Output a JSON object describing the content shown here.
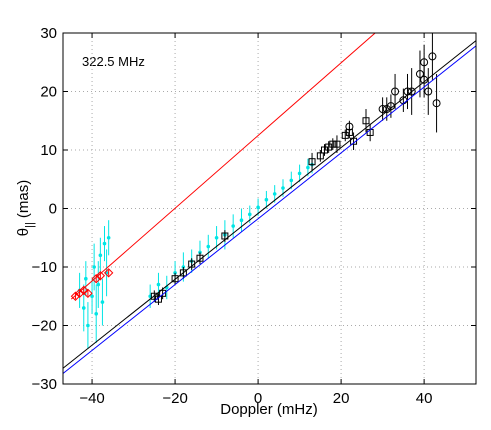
{
  "chart_data": {
    "type": "scatter",
    "annotation": "322.5 MHz",
    "x_label": "Doppler (mHz)",
    "y_label": {
      "symbol": "θ",
      "subscript": "||",
      "unit": "(mas)"
    },
    "xlim": [
      -47,
      52.5
    ],
    "ylim": [
      -30,
      30
    ],
    "xticks": [
      {
        "value": -40,
        "label": "−40"
      },
      {
        "value": -20,
        "label": "−20"
      },
      0,
      20,
      40
    ],
    "yticks": [
      {
        "value": -30,
        "label": "−30"
      },
      {
        "value": -20,
        "label": "−20"
      },
      {
        "value": -10,
        "label": "−10"
      },
      0,
      10,
      20,
      30
    ],
    "grid": true,
    "lines": [
      {
        "color": "#ff0000",
        "x": [
          -45,
          28.2
        ],
        "y": [
          -15.5,
          30
        ]
      },
      {
        "color": "#000000",
        "x": [
          -47,
          52.5
        ],
        "y": [
          -27.3,
          28.7
        ]
      },
      {
        "color": "#0000ff",
        "x": [
          -47,
          52.5
        ],
        "y": [
          -28.2,
          27.8
        ]
      }
    ],
    "series": [
      {
        "marker": "dot",
        "color": "#00e5e5",
        "x": [
          -43,
          -42,
          -41.5,
          -41,
          -40,
          -39.5,
          -39,
          -38.5,
          -38,
          -37.5,
          -37,
          -36.5,
          -36,
          -26,
          -24,
          -22,
          -20,
          -18,
          -16,
          -14,
          -12,
          -10,
          -8,
          -6,
          -4,
          -2,
          0,
          2,
          4,
          6,
          8,
          10,
          12,
          13
        ],
        "y": [
          -14,
          -17,
          -12,
          -20,
          -15,
          -10,
          -18,
          -13,
          -8,
          -16,
          -6,
          -11,
          -5,
          -15,
          -13,
          -13.5,
          -11,
          -10,
          -9,
          -7.5,
          -6.5,
          -5,
          -4.5,
          -3,
          -2,
          -1,
          0.2,
          1.5,
          2.5,
          3.5,
          4.8,
          6,
          7,
          7.5
        ],
        "errors": [
          3,
          4,
          3,
          4,
          3,
          4,
          5,
          4,
          3,
          4,
          3,
          4,
          3,
          2,
          2,
          2,
          2,
          2.5,
          2,
          2,
          2,
          2,
          2.5,
          2,
          2,
          1.5,
          1.5,
          1.5,
          1.5,
          1.5,
          1.5,
          1.5,
          1.5,
          1.5
        ]
      },
      {
        "marker": "square",
        "color": "#000000",
        "x": [
          -25,
          -24,
          -23,
          -20,
          -18,
          -16,
          -14,
          -8,
          13,
          15,
          16,
          17,
          18,
          19,
          21,
          22,
          23,
          26,
          27
        ],
        "y": [
          -15,
          -15.5,
          -14.5,
          -12,
          -11,
          -9.5,
          -8.5,
          -4.7,
          8,
          9,
          10,
          10.5,
          11,
          11,
          12.5,
          13,
          11.5,
          15,
          13
        ],
        "errors": [
          1,
          1,
          1,
          1,
          1,
          1,
          1,
          1,
          1.5,
          1,
          1,
          1,
          1,
          1.5,
          1,
          1,
          1.5,
          2,
          1.5
        ]
      },
      {
        "marker": "circle",
        "color": "#000000",
        "x": [
          22,
          30,
          31,
          32,
          33,
          35,
          36,
          37,
          39,
          40,
          41,
          42,
          43,
          40
        ],
        "y": [
          14,
          17,
          17,
          17.5,
          20,
          18.5,
          20,
          20,
          23,
          22,
          20,
          26,
          18,
          25
        ],
        "errors": [
          1,
          2,
          2,
          2,
          3,
          2,
          3,
          4,
          4,
          3,
          4,
          4,
          5,
          3
        ]
      },
      {
        "marker": "diamond",
        "color": "#ff0000",
        "x": [
          -44,
          -43,
          -42,
          -41,
          -39,
          -38,
          -36
        ],
        "y": [
          -15,
          -14.5,
          -14,
          -14.5,
          -12,
          -11.5,
          -11
        ],
        "errors": [
          0.5,
          0.5,
          0.5,
          0.5,
          0.5,
          0.5,
          0.5
        ]
      }
    ]
  }
}
